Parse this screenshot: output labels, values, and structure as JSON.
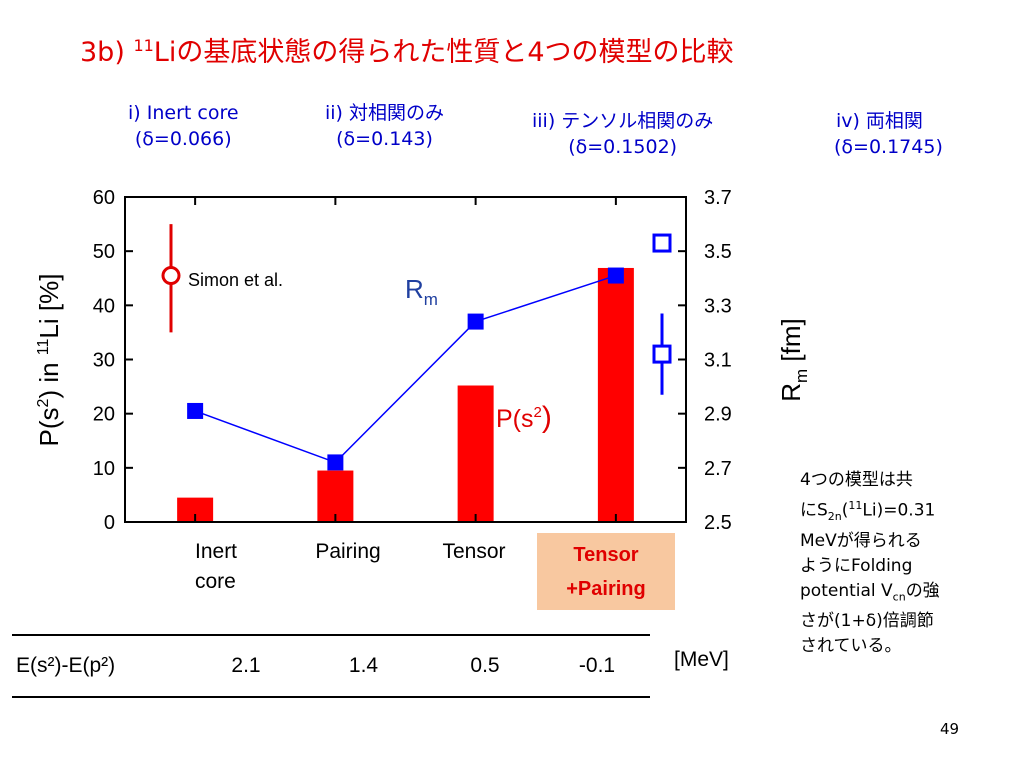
{
  "slide": {
    "title_prefix": "3b) ",
    "title_sup": "11",
    "title_main": "Liの基底状態の得られた性質と4つの模型の比較",
    "page_number": "49"
  },
  "models": [
    {
      "line1": "i) Inert core",
      "line2": "(δ=0.066)"
    },
    {
      "line1": "ii) 対相関のみ",
      "line2": "(δ=0.143)"
    },
    {
      "line1": "iii) テンソル相関のみ",
      "line2": "(δ=0.1502)"
    },
    {
      "line1": "iv) 両相関",
      "line2": "(δ=0.1745)"
    }
  ],
  "chart_data": {
    "type": "bar",
    "categories": [
      "Inert core",
      "Pairing",
      "Tensor",
      "Tensor +Pairing"
    ],
    "series": [
      {
        "name": "P(s²)",
        "axis": "left",
        "kind": "bar",
        "color": "#ff0000",
        "values": [
          4.5,
          9.5,
          25.2,
          46.9
        ]
      },
      {
        "name": "Rm",
        "axis": "right",
        "kind": "line",
        "color": "#0000ff",
        "values": [
          2.91,
          2.72,
          3.24,
          3.41
        ]
      }
    ],
    "ylabel_left": "P(s²) in ¹¹Li [%]",
    "ylabel_right": "Rm [fm]",
    "ylim_left": [
      0,
      60
    ],
    "ylim_right": [
      2.5,
      3.7
    ],
    "yticks_left": [
      "0",
      "10",
      "20",
      "30",
      "40",
      "50",
      "60"
    ],
    "yticks_right": [
      "2.5",
      "2.7",
      "2.9",
      "3.1",
      "3.3",
      "3.5",
      "3.7"
    ],
    "series_labels": {
      "ps2": "P(s²)",
      "rm": "Rm"
    },
    "experiment": {
      "label": "Simon et al.",
      "p_value": 45.5,
      "p_err_low": 35,
      "p_err_high": 55,
      "rm_points": [
        {
          "value": 3.53,
          "err_low": 3.5,
          "err_high": 3.56
        },
        {
          "value": 3.12,
          "err_low": 2.97,
          "err_high": 3.27
        }
      ],
      "exp_color_p": "#e00000",
      "exp_color_rm": "#0000ff"
    }
  },
  "energy_table": {
    "row_label": "E(s²)-E(p²)",
    "values": [
      "2.1",
      "1.4",
      "0.5",
      "-0.1"
    ],
    "unit": "[MeV]"
  },
  "highlight_label": {
    "line1": "Tensor",
    "line2": "+Pairing"
  },
  "note": {
    "l1": "4つの模型は共",
    "l2a": "にS",
    "l2sub": "2n",
    "l2b": "(",
    "l2sup": "11",
    "l2c": "Li)=0.31",
    "l3": "MeVが得られる",
    "l4": "ようにFolding",
    "l5a": "potential V",
    "l5sub": "cn",
    "l5b": "の強",
    "l6": "さが(1+δ)倍調節",
    "l7": "されている。"
  }
}
